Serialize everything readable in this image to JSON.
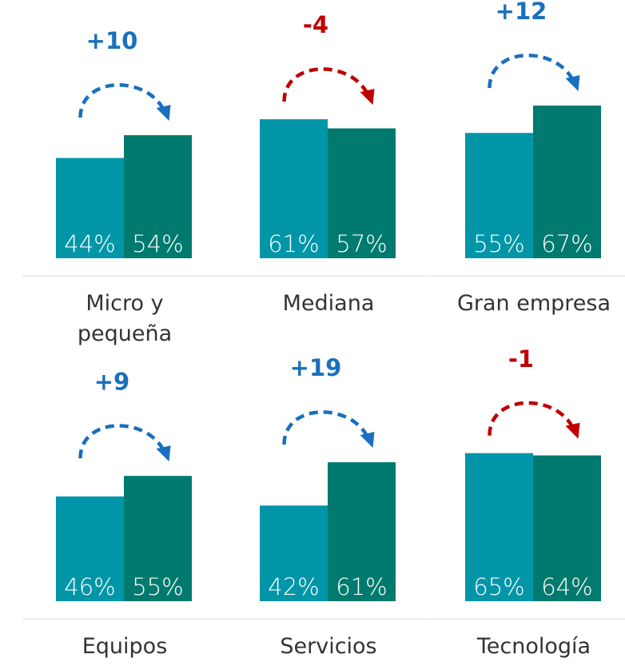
{
  "chart_data": [
    {
      "type": "bar",
      "categories": [
        "Micro y pequeña"
      ],
      "ylim": [
        0,
        100
      ],
      "annotation": "+10",
      "annotation_color": "#1a6fbe",
      "series": [
        {
          "color": "#0096a8",
          "values": [
            44
          ],
          "value_labels": [
            "44%"
          ]
        },
        {
          "color": "#007a6e",
          "values": [
            54
          ],
          "value_labels": [
            "54%"
          ]
        }
      ]
    },
    {
      "type": "bar",
      "categories": [
        "Mediana"
      ],
      "ylim": [
        0,
        100
      ],
      "annotation": "-4",
      "annotation_color": "#c00000",
      "series": [
        {
          "color": "#0096a8",
          "values": [
            61
          ],
          "value_labels": [
            "61%"
          ]
        },
        {
          "color": "#007a6e",
          "values": [
            57
          ],
          "value_labels": [
            "57%"
          ]
        }
      ]
    },
    {
      "type": "bar",
      "categories": [
        "Gran empresa"
      ],
      "ylim": [
        0,
        100
      ],
      "annotation": "+12",
      "annotation_color": "#1a6fbe",
      "series": [
        {
          "color": "#0096a8",
          "values": [
            55
          ],
          "value_labels": [
            "55%"
          ]
        },
        {
          "color": "#007a6e",
          "values": [
            67
          ],
          "value_labels": [
            "67%"
          ]
        }
      ]
    },
    {
      "type": "bar",
      "categories": [
        "Equipos"
      ],
      "ylim": [
        0,
        100
      ],
      "annotation": "+9",
      "annotation_color": "#1a6fbe",
      "series": [
        {
          "color": "#0096a8",
          "values": [
            46
          ],
          "value_labels": [
            "46%"
          ]
        },
        {
          "color": "#007a6e",
          "values": [
            55
          ],
          "value_labels": [
            "55%"
          ]
        }
      ]
    },
    {
      "type": "bar",
      "categories": [
        "Servicios"
      ],
      "ylim": [
        0,
        100
      ],
      "annotation": "+19",
      "annotation_color": "#1a6fbe",
      "series": [
        {
          "color": "#0096a8",
          "values": [
            42
          ],
          "value_labels": [
            "42%"
          ]
        },
        {
          "color": "#007a6e",
          "values": [
            61
          ],
          "value_labels": [
            "61%"
          ]
        }
      ]
    },
    {
      "type": "bar",
      "categories": [
        "Tecnología"
      ],
      "ylim": [
        0,
        100
      ],
      "annotation": "-1",
      "annotation_color": "#c00000",
      "series": [
        {
          "color": "#0096a8",
          "values": [
            65
          ],
          "value_labels": [
            "65%"
          ]
        },
        {
          "color": "#007a6e",
          "values": [
            64
          ],
          "value_labels": [
            "64%"
          ]
        }
      ]
    }
  ]
}
